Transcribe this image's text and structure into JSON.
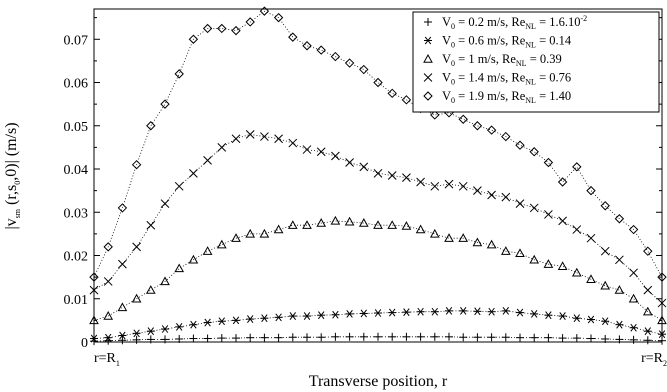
{
  "chart_data": {
    "type": "scatter",
    "xlabel": "Transverse position, r",
    "ylabel_main": "|v",
    "ylabel_sub": "sm",
    "ylabel_rest": " (r,s",
    "ylabel_sub2": "0",
    "ylabel_tail": ",0)| (m/s)",
    "x_tick_left": {
      "main": "r=R",
      "sub": "1"
    },
    "x_tick_right": {
      "main": "r=R",
      "sub": "2"
    },
    "xlim": [
      0,
      1
    ],
    "ylim": [
      0,
      0.077
    ],
    "yticks": [
      "0",
      "0.01",
      "0.02",
      "0.03",
      "0.04",
      "0.05",
      "0.06",
      "0.07"
    ],
    "ytick_values": [
      0,
      0.01,
      0.02,
      0.03,
      0.04,
      0.05,
      0.06,
      0.07
    ],
    "grid": false,
    "legend_position": "top-right",
    "series": [
      {
        "name": "V0 = 0.2 m/s, ReNL = 1.6.10-2",
        "legend": {
          "a": "V",
          "a_sub": "0",
          "b": " = 0.2 m/s, Re",
          "b_sub": "NL",
          "c": " = 1.6.10",
          "c_sup": "-2"
        },
        "marker": "plus",
        "color": "#000000",
        "x": [
          0.0,
          0.025,
          0.05,
          0.075,
          0.1,
          0.125,
          0.15,
          0.175,
          0.2,
          0.225,
          0.25,
          0.275,
          0.3,
          0.325,
          0.35,
          0.375,
          0.4,
          0.425,
          0.45,
          0.475,
          0.5,
          0.525,
          0.55,
          0.575,
          0.6,
          0.625,
          0.65,
          0.675,
          0.7,
          0.725,
          0.75,
          0.775,
          0.8,
          0.825,
          0.85,
          0.875,
          0.9,
          0.925,
          0.95,
          0.975,
          1.0
        ],
        "values": [
          0.0002,
          0.0003,
          0.0004,
          0.0005,
          0.0006,
          0.0006,
          0.0007,
          0.0008,
          0.0008,
          0.0009,
          0.0009,
          0.001,
          0.001,
          0.001,
          0.0011,
          0.0011,
          0.0011,
          0.0012,
          0.0012,
          0.0012,
          0.0012,
          0.0012,
          0.0012,
          0.0012,
          0.0012,
          0.0012,
          0.0011,
          0.0011,
          0.0011,
          0.0011,
          0.001,
          0.001,
          0.001,
          0.0009,
          0.0009,
          0.0008,
          0.0007,
          0.0006,
          0.0005,
          0.0004,
          0.0003
        ]
      },
      {
        "name": "V0 = 0.6 m/s, ReNL = 0.14",
        "legend": {
          "a": "V",
          "a_sub": "0",
          "b": " = 0.6 m/s, Re",
          "b_sub": "NL",
          "c": " = 0.14",
          "c_sup": ""
        },
        "marker": "asterisk",
        "color": "#000000",
        "x": [
          0.0,
          0.025,
          0.05,
          0.075,
          0.1,
          0.125,
          0.15,
          0.175,
          0.2,
          0.225,
          0.25,
          0.275,
          0.3,
          0.325,
          0.35,
          0.375,
          0.4,
          0.425,
          0.45,
          0.475,
          0.5,
          0.525,
          0.55,
          0.575,
          0.6,
          0.625,
          0.65,
          0.675,
          0.7,
          0.725,
          0.75,
          0.775,
          0.8,
          0.825,
          0.85,
          0.875,
          0.9,
          0.925,
          0.95,
          0.975,
          1.0
        ],
        "values": [
          0.0008,
          0.001,
          0.0015,
          0.002,
          0.0025,
          0.003,
          0.0035,
          0.004,
          0.0045,
          0.0048,
          0.005,
          0.0053,
          0.0055,
          0.0057,
          0.006,
          0.006,
          0.0062,
          0.0063,
          0.0065,
          0.0066,
          0.0067,
          0.0068,
          0.0069,
          0.007,
          0.007,
          0.0072,
          0.0072,
          0.0071,
          0.007,
          0.0072,
          0.0068,
          0.0065,
          0.0062,
          0.006,
          0.0055,
          0.0052,
          0.0048,
          0.004,
          0.0033,
          0.0025,
          0.0018
        ]
      },
      {
        "name": "V0 = 1 m/s, ReNL = 0.39",
        "legend": {
          "a": "V",
          "a_sub": "0",
          "b": " =  1   m/s, Re",
          "b_sub": "NL",
          "c": " = 0.39",
          "c_sup": ""
        },
        "marker": "triangle",
        "color": "#000000",
        "x": [
          0.0,
          0.025,
          0.05,
          0.075,
          0.1,
          0.125,
          0.15,
          0.175,
          0.2,
          0.225,
          0.25,
          0.275,
          0.3,
          0.325,
          0.35,
          0.375,
          0.4,
          0.425,
          0.45,
          0.475,
          0.5,
          0.525,
          0.55,
          0.575,
          0.6,
          0.625,
          0.65,
          0.675,
          0.7,
          0.725,
          0.75,
          0.775,
          0.8,
          0.825,
          0.85,
          0.875,
          0.9,
          0.925,
          0.95,
          0.975,
          1.0
        ],
        "values": [
          0.005,
          0.006,
          0.008,
          0.01,
          0.012,
          0.014,
          0.017,
          0.019,
          0.021,
          0.0225,
          0.024,
          0.025,
          0.025,
          0.026,
          0.027,
          0.027,
          0.0275,
          0.028,
          0.0278,
          0.0275,
          0.027,
          0.027,
          0.0268,
          0.026,
          0.025,
          0.024,
          0.024,
          0.023,
          0.0225,
          0.021,
          0.0205,
          0.019,
          0.018,
          0.0175,
          0.016,
          0.0145,
          0.013,
          0.012,
          0.01,
          0.007,
          0.005
        ]
      },
      {
        "name": "V0 = 1.4 m/s, ReNL = 0.76",
        "legend": {
          "a": "V",
          "a_sub": "0",
          "b": " = 1.4 m/s, Re",
          "b_sub": "NL",
          "c": " = 0.76",
          "c_sup": ""
        },
        "marker": "cross",
        "color": "#000000",
        "x": [
          0.0,
          0.025,
          0.05,
          0.075,
          0.1,
          0.125,
          0.15,
          0.175,
          0.2,
          0.225,
          0.25,
          0.275,
          0.3,
          0.325,
          0.35,
          0.375,
          0.4,
          0.425,
          0.45,
          0.475,
          0.5,
          0.525,
          0.55,
          0.575,
          0.6,
          0.625,
          0.65,
          0.675,
          0.7,
          0.725,
          0.75,
          0.775,
          0.8,
          0.825,
          0.85,
          0.875,
          0.9,
          0.925,
          0.95,
          0.975,
          1.0
        ],
        "values": [
          0.012,
          0.014,
          0.018,
          0.022,
          0.027,
          0.032,
          0.036,
          0.039,
          0.042,
          0.045,
          0.047,
          0.048,
          0.0475,
          0.047,
          0.046,
          0.0445,
          0.044,
          0.043,
          0.0415,
          0.0405,
          0.039,
          0.0385,
          0.038,
          0.037,
          0.036,
          0.0365,
          0.036,
          0.035,
          0.034,
          0.0335,
          0.032,
          0.031,
          0.0295,
          0.028,
          0.026,
          0.024,
          0.021,
          0.019,
          0.016,
          0.012,
          0.009
        ]
      },
      {
        "name": "V0 = 1.9 m/s, ReNL = 1.40",
        "legend": {
          "a": "V",
          "a_sub": "0",
          "b": " = 1.9 m/s, Re",
          "b_sub": "NL",
          "c": " = 1.40",
          "c_sup": ""
        },
        "marker": "diamond",
        "color": "#000000",
        "x": [
          0.0,
          0.025,
          0.05,
          0.075,
          0.1,
          0.125,
          0.15,
          0.175,
          0.2,
          0.225,
          0.25,
          0.275,
          0.3,
          0.325,
          0.35,
          0.375,
          0.4,
          0.425,
          0.45,
          0.475,
          0.5,
          0.525,
          0.55,
          0.575,
          0.6,
          0.625,
          0.65,
          0.675,
          0.7,
          0.725,
          0.75,
          0.775,
          0.8,
          0.825,
          0.85,
          0.875,
          0.9,
          0.925,
          0.95,
          0.975,
          1.0
        ],
        "values": [
          0.015,
          0.022,
          0.031,
          0.041,
          0.05,
          0.055,
          0.062,
          0.07,
          0.0725,
          0.0725,
          0.072,
          0.074,
          0.0765,
          0.075,
          0.0705,
          0.0685,
          0.0675,
          0.066,
          0.0645,
          0.063,
          0.06,
          0.0575,
          0.056,
          0.054,
          0.0525,
          0.053,
          0.0515,
          0.05,
          0.049,
          0.0475,
          0.0455,
          0.044,
          0.0415,
          0.037,
          0.0405,
          0.035,
          0.0315,
          0.0285,
          0.026,
          0.021,
          0.015
        ]
      }
    ]
  }
}
